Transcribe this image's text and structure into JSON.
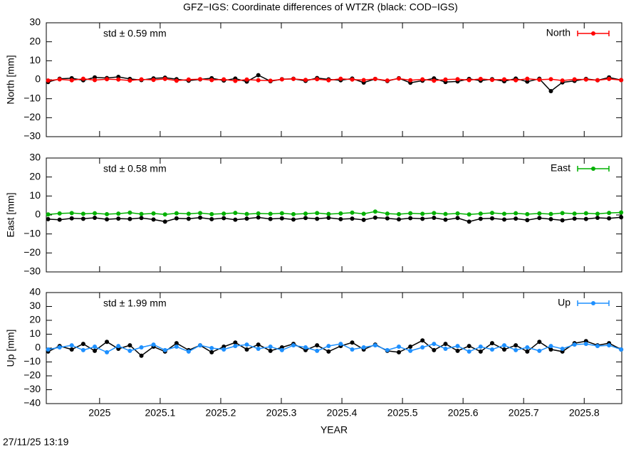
{
  "title": "GFZ−IGS: Coordinate differences of WTZR (black: COD−IGS)",
  "timestamp": "27/11/25 13:19",
  "chart_data": [
    {
      "type": "line",
      "ylabel": "North [mm]",
      "annotation": "std ± 0.59 mm",
      "x": [
        2024.915,
        2024.934,
        2024.954,
        2024.973,
        2024.992,
        2025.012,
        2025.031,
        2025.05,
        2025.069,
        2025.089,
        2025.108,
        2025.127,
        2025.147,
        2025.166,
        2025.185,
        2025.205,
        2025.224,
        2025.243,
        2025.262,
        2025.282,
        2025.301,
        2025.32,
        2025.34,
        2025.359,
        2025.378,
        2025.398,
        2025.417,
        2025.436,
        2025.455,
        2025.475,
        2025.494,
        2025.513,
        2025.533,
        2025.552,
        2025.571,
        2025.591,
        2025.61,
        2025.629,
        2025.648,
        2025.668,
        2025.687,
        2025.706,
        2025.726,
        2025.745,
        2025.764,
        2025.784,
        2025.803,
        2025.822,
        2025.841,
        2025.861
      ],
      "series": [
        {
          "color": "#000000",
          "values": [
            -1.2,
            0.5,
            0.8,
            -0.3,
            1.2,
            0.9,
            1.5,
            0.4,
            -0.2,
            0.7,
            1.1,
            0.3,
            -0.5,
            0.2,
            0.8,
            -0.4,
            0.6,
            -1.0,
            2.4,
            -0.8,
            0.3,
            0.5,
            -0.6,
            0.9,
            0.2,
            -0.3,
            0.6,
            -1.5,
            0.4,
            -0.7,
            0.8,
            -1.6,
            -0.5,
            0.7,
            -1.2,
            -0.9,
            0.4,
            -0.5,
            0.3,
            -0.8,
            0.6,
            -1.0,
            0.5,
            -6.0,
            -1.4,
            -0.6,
            0.4,
            -0.3,
            1.2,
            -0.2
          ]
        },
        {
          "name": "North",
          "color": "#ff0000",
          "values": [
            -0.4,
            0.2,
            -0.3,
            0.5,
            -0.2,
            0.3,
            0.1,
            -0.4,
            0.2,
            -0.1,
            0.4,
            -0.5,
            0.1,
            0.3,
            -0.2,
            0.2,
            -0.6,
            0.1,
            -0.3,
            -0.5,
            0.2,
            0.4,
            -0.1,
            0.3,
            -0.3,
            0.5,
            0.1,
            -0.2,
            0.4,
            -0.4,
            0.6,
            -0.3,
            0.2,
            -0.5,
            0.1,
            0.3,
            -0.2,
            0.4,
            -0.1,
            0.2,
            -0.3,
            0.5,
            0.0,
            0.3,
            -0.4,
            0.2,
            0.1,
            -0.3,
            0.4,
            -0.2
          ]
        }
      ],
      "xlim": [
        2024.912,
        2025.862
      ],
      "xticks": [
        2025,
        2025.1,
        2025.2,
        2025.3,
        2025.4,
        2025.5,
        2025.6,
        2025.7,
        2025.8
      ],
      "ylim": [
        -30,
        30
      ],
      "yticks": [
        {
          "value": -30,
          "label": "−30"
        },
        {
          "value": -20,
          "label": "−20"
        },
        {
          "value": -10,
          "label": "−10"
        },
        0,
        10,
        20,
        30
      ],
      "legend": "top-right"
    },
    {
      "type": "line",
      "ylabel": "East [mm]",
      "annotation": "std ± 0.58 mm",
      "x": [
        2024.915,
        2024.934,
        2024.954,
        2024.973,
        2024.992,
        2025.012,
        2025.031,
        2025.05,
        2025.069,
        2025.089,
        2025.108,
        2025.127,
        2025.147,
        2025.166,
        2025.185,
        2025.205,
        2025.224,
        2025.243,
        2025.262,
        2025.282,
        2025.301,
        2025.32,
        2025.34,
        2025.359,
        2025.378,
        2025.398,
        2025.417,
        2025.436,
        2025.455,
        2025.475,
        2025.494,
        2025.513,
        2025.533,
        2025.552,
        2025.571,
        2025.591,
        2025.61,
        2025.629,
        2025.648,
        2025.668,
        2025.687,
        2025.706,
        2025.726,
        2025.745,
        2025.764,
        2025.784,
        2025.803,
        2025.822,
        2025.841,
        2025.861
      ],
      "series": [
        {
          "color": "#000000",
          "values": [
            -2.2,
            -2.5,
            -1.8,
            -2.0,
            -1.5,
            -2.3,
            -1.9,
            -2.1,
            -1.6,
            -2.4,
            -3.5,
            -1.8,
            -2.0,
            -1.4,
            -2.2,
            -1.7,
            -2.5,
            -1.9,
            -1.3,
            -2.1,
            -1.8,
            -2.4,
            -1.6,
            -2.0,
            -1.5,
            -2.2,
            -1.9,
            -2.6,
            -1.4,
            -1.8,
            -2.3,
            -1.7,
            -2.0,
            -1.5,
            -2.5,
            -1.6,
            -3.5,
            -2.0,
            -1.8,
            -2.4,
            -1.9,
            -2.7,
            -1.6,
            -2.2,
            -2.8,
            -1.9,
            -2.1,
            -1.5,
            -1.8,
            -1.2
          ]
        },
        {
          "name": "East",
          "color": "#00b000",
          "values": [
            0.3,
            0.8,
            1.0,
            0.6,
            0.9,
            0.4,
            0.7,
            1.2,
            0.5,
            0.8,
            0.3,
            0.9,
            0.6,
            1.0,
            0.4,
            0.7,
            1.1,
            0.5,
            0.8,
            0.6,
            0.9,
            0.4,
            0.7,
            1.0,
            0.5,
            0.8,
            1.2,
            0.6,
            1.8,
            0.7,
            0.4,
            0.9,
            0.6,
            1.0,
            0.5,
            0.8,
            0.3,
            0.7,
            1.1,
            0.6,
            0.9,
            0.4,
            0.8,
            0.5,
            1.0,
            0.7,
            0.9,
            0.6,
            1.1,
            1.3
          ]
        }
      ],
      "xlim": [
        2024.912,
        2025.862
      ],
      "xticks": [
        2025,
        2025.1,
        2025.2,
        2025.3,
        2025.4,
        2025.5,
        2025.6,
        2025.7,
        2025.8
      ],
      "ylim": [
        -30,
        30
      ],
      "yticks": [
        {
          "value": -30,
          "label": "−30"
        },
        {
          "value": -20,
          "label": "−20"
        },
        {
          "value": -10,
          "label": "−10"
        },
        0,
        10,
        20,
        30
      ],
      "legend": "top-right"
    },
    {
      "type": "line",
      "ylabel": "Up [mm]",
      "annotation": "std ± 1.99 mm",
      "xlabel": "YEAR",
      "x": [
        2024.915,
        2024.934,
        2024.954,
        2024.973,
        2024.992,
        2025.012,
        2025.031,
        2025.05,
        2025.069,
        2025.089,
        2025.108,
        2025.127,
        2025.147,
        2025.166,
        2025.185,
        2025.205,
        2025.224,
        2025.243,
        2025.262,
        2025.282,
        2025.301,
        2025.32,
        2025.34,
        2025.359,
        2025.378,
        2025.398,
        2025.417,
        2025.436,
        2025.455,
        2025.475,
        2025.494,
        2025.513,
        2025.533,
        2025.552,
        2025.571,
        2025.591,
        2025.61,
        2025.629,
        2025.648,
        2025.668,
        2025.687,
        2025.706,
        2025.726,
        2025.745,
        2025.764,
        2025.784,
        2025.803,
        2025.822,
        2025.841,
        2025.861
      ],
      "series": [
        {
          "color": "#000000",
          "values": [
            -2.5,
            1.5,
            -1.0,
            3.0,
            -2.0,
            4.5,
            -0.5,
            2.0,
            -5.5,
            1.0,
            -2.5,
            3.5,
            -1.5,
            2.0,
            -3.0,
            1.0,
            4.0,
            -1.0,
            2.5,
            -2.0,
            0.5,
            3.0,
            -1.5,
            2.0,
            -2.5,
            1.5,
            4.0,
            -1.0,
            2.5,
            -2.0,
            -3.0,
            1.0,
            5.5,
            -1.5,
            3.0,
            -2.0,
            1.5,
            -2.5,
            3.5,
            -1.0,
            2.0,
            -2.5,
            4.5,
            -1.0,
            -2.5,
            3.5,
            5.0,
            2.0,
            3.5,
            -1.0
          ]
        },
        {
          "name": "Up",
          "color": "#1e90ff",
          "values": [
            -1.0,
            0.5,
            2.0,
            -1.5,
            1.0,
            -3.0,
            1.5,
            -2.0,
            0.5,
            2.5,
            -1.5,
            1.0,
            -2.5,
            2.0,
            0.0,
            -1.0,
            1.5,
            2.5,
            -0.5,
            1.0,
            -1.5,
            2.0,
            0.5,
            -2.0,
            1.5,
            3.0,
            -1.0,
            0.5,
            2.0,
            -1.5,
            1.0,
            -2.0,
            0.5,
            3.0,
            -0.5,
            1.5,
            -2.5,
            1.0,
            -1.0,
            2.0,
            -1.5,
            0.5,
            -2.0,
            1.5,
            -0.5,
            2.5,
            3.0,
            1.5,
            2.0,
            -1.0
          ]
        }
      ],
      "xlim": [
        2024.912,
        2025.862
      ],
      "xticks": [
        2025,
        2025.1,
        2025.2,
        2025.3,
        2025.4,
        2025.5,
        2025.6,
        2025.7,
        2025.8
      ],
      "ylim": [
        -40,
        40
      ],
      "yticks": [
        {
          "value": -40,
          "label": "−40"
        },
        {
          "value": -30,
          "label": "−30"
        },
        {
          "value": -20,
          "label": "−20"
        },
        {
          "value": -10,
          "label": "−10"
        },
        0,
        10,
        20,
        30,
        40
      ],
      "legend": "top-right"
    }
  ]
}
